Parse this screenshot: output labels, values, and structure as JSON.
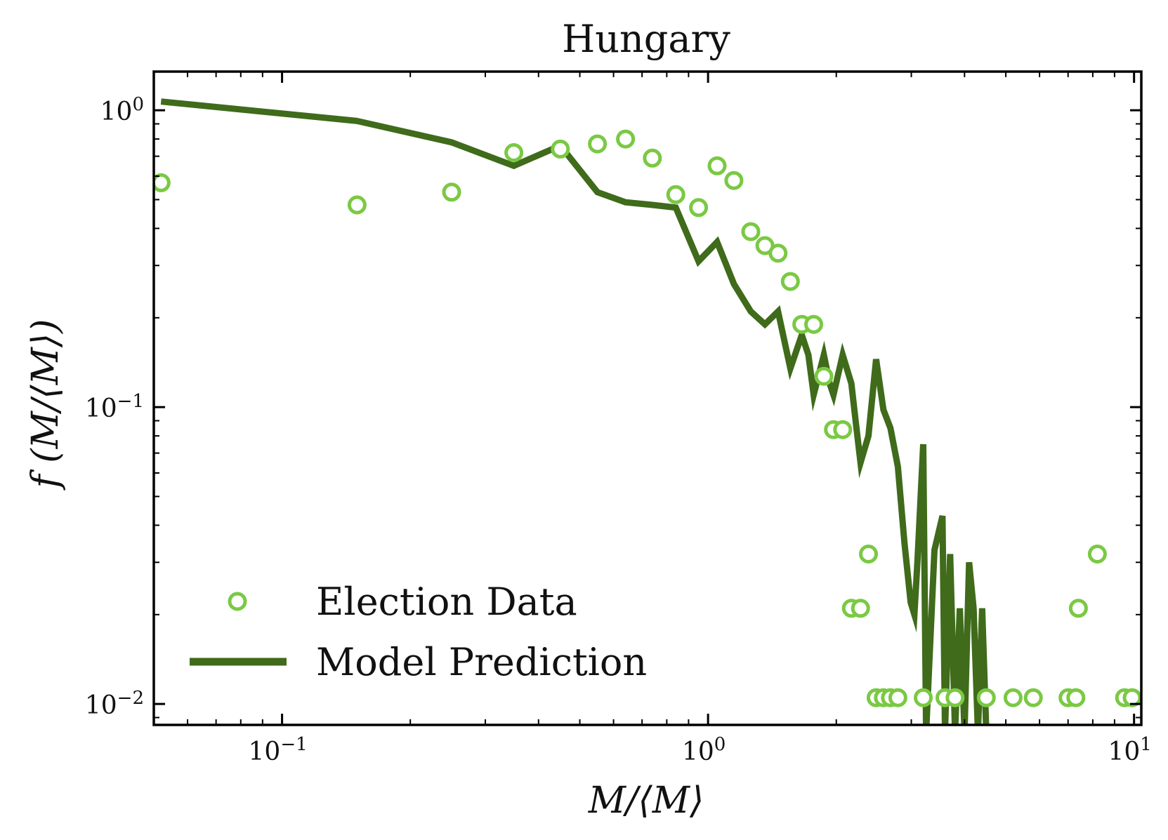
{
  "chart_data": {
    "type": "scatter",
    "title": "Hungary",
    "xlabel": "M/⟨M⟩",
    "ylabel": "f (M/⟨M⟩)",
    "xscale": "log",
    "yscale": "log",
    "xlim": [
      0.05,
      10.4
    ],
    "ylim": [
      0.0085,
      1.35
    ],
    "xticks": [
      {
        "value": 0.1,
        "base": "10",
        "exp": "−1"
      },
      {
        "value": 1,
        "base": "10",
        "exp": "0"
      },
      {
        "value": 10,
        "base": "10",
        "exp": "1"
      }
    ],
    "yticks": [
      {
        "value": 0.01,
        "base": "10",
        "exp": "−2"
      },
      {
        "value": 0.1,
        "base": "10",
        "exp": "−1"
      },
      {
        "value": 1,
        "base": "10",
        "exp": "0"
      }
    ],
    "grid": false,
    "legend_position": "lower-left",
    "series": [
      {
        "name": "Election Data",
        "kind": "scatter",
        "marker": "open-circle",
        "color": "#7ac943",
        "x": [
          0.052,
          0.15,
          0.25,
          0.35,
          0.45,
          0.55,
          0.64,
          0.74,
          0.84,
          0.95,
          1.05,
          1.15,
          1.26,
          1.36,
          1.46,
          1.56,
          1.66,
          1.77,
          1.87,
          1.97,
          2.07,
          2.17,
          2.28,
          2.38,
          2.48,
          2.58,
          2.68,
          2.79,
          3.2,
          3.6,
          3.8,
          4.5,
          5.2,
          5.8,
          7.0,
          7.3,
          7.4,
          8.2,
          9.5,
          9.9
        ],
        "y": [
          0.57,
          0.48,
          0.53,
          0.72,
          0.74,
          0.77,
          0.8,
          0.69,
          0.52,
          0.47,
          0.65,
          0.58,
          0.39,
          0.35,
          0.33,
          0.265,
          0.19,
          0.19,
          0.127,
          0.084,
          0.084,
          0.021,
          0.021,
          0.032,
          0.0105,
          0.0105,
          0.0105,
          0.0105,
          0.0105,
          0.0105,
          0.0105,
          0.0105,
          0.0105,
          0.0105,
          0.0105,
          0.0105,
          0.021,
          0.032,
          0.0105,
          0.0105
        ]
      },
      {
        "name": "Model Prediction",
        "kind": "line",
        "color": "#3f6b1b",
        "x": [
          0.052,
          0.15,
          0.25,
          0.35,
          0.45,
          0.55,
          0.64,
          0.74,
          0.84,
          0.95,
          1.05,
          1.15,
          1.26,
          1.36,
          1.46,
          1.56,
          1.66,
          1.72,
          1.77,
          1.87,
          1.93,
          1.97,
          2.07,
          2.17,
          2.22,
          2.28,
          2.38,
          2.48,
          2.58,
          2.68,
          2.79,
          2.89,
          2.99,
          3.05,
          3.1,
          3.2,
          3.25,
          3.4,
          3.55,
          3.6,
          3.7,
          3.8,
          3.9,
          4.0,
          4.1,
          4.2,
          4.3,
          4.4,
          4.5,
          4.6,
          4.7
        ],
        "y": [
          1.07,
          0.92,
          0.78,
          0.65,
          0.76,
          0.53,
          0.49,
          0.48,
          0.47,
          0.31,
          0.36,
          0.26,
          0.21,
          0.19,
          0.21,
          0.135,
          0.175,
          0.15,
          0.11,
          0.15,
          0.12,
          0.11,
          0.15,
          0.12,
          0.09,
          0.065,
          0.08,
          0.145,
          0.098,
          0.085,
          0.063,
          0.035,
          0.022,
          0.02,
          0.03,
          0.075,
          0.008,
          0.033,
          0.043,
          0.008,
          0.032,
          0.008,
          0.021,
          0.008,
          0.03,
          0.021,
          0.008,
          0.021,
          0.008,
          0.008,
          0.008
        ]
      }
    ]
  }
}
